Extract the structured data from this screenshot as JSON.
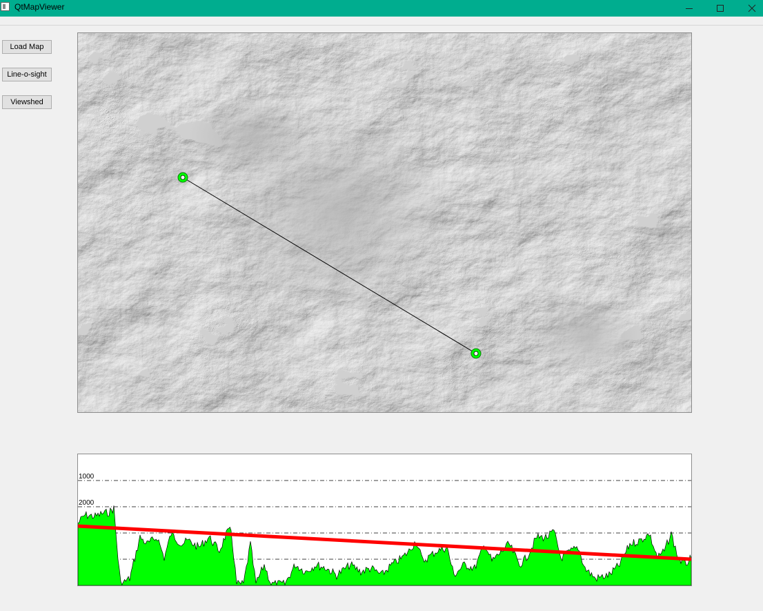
{
  "window": {
    "title": "QtMapViewer",
    "controls": [
      "minimize-icon",
      "maximize-icon",
      "close-icon"
    ],
    "title_bar_color": "#00ad8f"
  },
  "sidebar": {
    "buttons": [
      {
        "label": "Load Map"
      },
      {
        "label": "Line-o-sight"
      },
      {
        "label": "Viewshed"
      }
    ]
  },
  "map": {
    "kind": "hillshade terrain",
    "observer_marker_color": "#00ff00",
    "sight_line_color": "#000000"
  },
  "profile": {
    "gridlines": [
      "1000",
      "2000",
      "3000",
      "4000"
    ],
    "terrain_color": "#00ff00",
    "sight_line_color": "#ff0000",
    "sight_line_from": 3000,
    "sight_line_to": 4000
  }
}
